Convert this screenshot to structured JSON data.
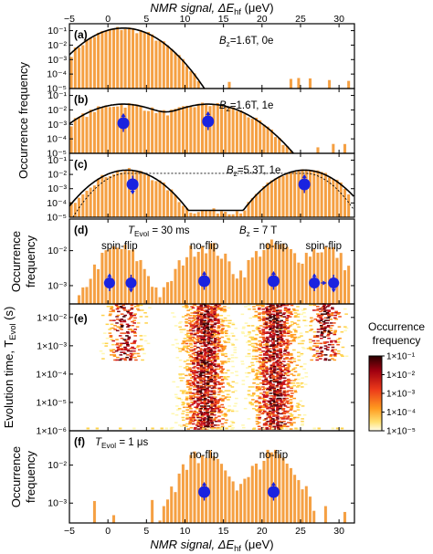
{
  "figure": {
    "x_axis_title_top": "NMR signal, ΔE",
    "x_axis_title_top_sub": "hf",
    "x_axis_title_top_unit": " (μeV)",
    "x_axis_title_bottom": "NMR signal, ΔE",
    "x_axis_title_bottom_sub": "hf",
    "x_axis_title_bottom_unit": " (μeV)",
    "y_title_abc": "Occurrence frequency",
    "y_title_d_line1": "Occurrence",
    "y_title_d_line2": "frequency",
    "y_title_e_main": "Evolution time, T",
    "y_title_e_sub": "Evol",
    "y_title_e_unit": " (s)",
    "y_title_f_line1": "Occurrence",
    "y_title_f_line2": "frequency",
    "x_ticks": [
      "−5",
      "0",
      "5",
      "10",
      "15",
      "20",
      "25",
      "30"
    ],
    "colorbar_title_line1": "Occurrence",
    "colorbar_title_line2": "frequency",
    "colorbar_ticks": [
      "1×10⁻¹",
      "1×10⁻²",
      "1×10⁻³",
      "1×10⁻⁴",
      "1×10⁻⁵"
    ],
    "colors": {
      "bar": "#f5a043",
      "bar_edge": "#ffffff",
      "spin": "#1a23e0",
      "curve": "#000000"
    }
  },
  "panels": {
    "a": {
      "tag": "(a)",
      "annot": "B",
      "annot_sub": "z",
      "annot_rest": "=1.6T, 0e",
      "yticks": [
        "10⁻¹",
        "10⁻²",
        "10⁻³",
        "10⁻⁴",
        "10⁻⁵"
      ]
    },
    "b": {
      "tag": "(b)",
      "annot": "B",
      "annot_sub": "z",
      "annot_rest": "=1.6T, 1e",
      "yticks": [
        "10⁻¹",
        "10⁻²",
        "10⁻³",
        "10⁻⁴",
        "10⁻⁵"
      ]
    },
    "c": {
      "tag": "(c)",
      "annot": "B",
      "annot_sub": "z",
      "annot_rest": "=5.3T, 1e",
      "yticks": [
        "10⁻¹",
        "10⁻²",
        "10⁻³",
        "10⁻⁴",
        "10⁻⁵"
      ]
    },
    "d": {
      "tag": "(d)",
      "annot1": "T",
      "annot1_sub": "Evol",
      "annot1_rest": " = 30 ms",
      "annot2": "B",
      "annot2_sub": "z",
      "annot2_rest": " = 7 T",
      "labels": [
        "spin-flip",
        "no-flip",
        "no-flip",
        "spin-flip"
      ],
      "yticks": [
        "10⁻²",
        "10⁻³"
      ]
    },
    "e": {
      "tag": "(e)",
      "yticks": [
        "1×10⁻²",
        "1×10⁻³",
        "1×10⁻⁴",
        "1×10⁻⁵",
        "1×10⁻⁶"
      ]
    },
    "f": {
      "tag": "(f)",
      "annot1": "T",
      "annot1_sub": "Evol",
      "annot1_rest": " = 1 μs",
      "labels": [
        "no-flip",
        "no-flip"
      ],
      "yticks": [
        "10⁻²",
        "10⁻³"
      ]
    }
  },
  "chart_data": [
    {
      "panel": "a",
      "type": "bar",
      "xlabel": "NMR signal, ΔEhf (μeV)",
      "ylabel": "Occurrence frequency",
      "xlim": [
        -5,
        32
      ],
      "ylim": [
        1e-05,
        0.3
      ],
      "yscale": "log",
      "peaks": [
        {
          "center": 2,
          "peak": 0.15,
          "sigma": 2.4
        }
      ],
      "fit": [
        {
          "type": "gaussian",
          "center": 2,
          "peak": 0.15,
          "sigma": 2.4
        }
      ]
    },
    {
      "panel": "b",
      "type": "bar",
      "xlabel": "NMR signal, ΔEhf (μeV)",
      "ylabel": "Occurrence frequency",
      "xlim": [
        -5,
        32
      ],
      "ylim": [
        1e-05,
        0.3
      ],
      "yscale": "log",
      "peaks": [
        {
          "center": 2,
          "peak": 0.025,
          "sigma": 2.8
        },
        {
          "center": 13,
          "peak": 0.025,
          "sigma": 2.8
        }
      ],
      "fit": [
        {
          "type": "double-gaussian",
          "centers": [
            2,
            13
          ],
          "peak": 0.025,
          "sigma": 2.8
        }
      ]
    },
    {
      "panel": "c",
      "type": "bar",
      "xlabel": "NMR signal, ΔEhf (μeV)",
      "ylabel": "Occurrence frequency",
      "xlim": [
        -5,
        32
      ],
      "ylim": [
        1e-05,
        0.3
      ],
      "yscale": "log",
      "peaks": [
        {
          "center": 2.5,
          "peak": 0.02,
          "sigma": 2.2
        },
        {
          "center": 25.5,
          "peak": 0.02,
          "sigma": 2.2
        }
      ],
      "plateau": 3e-05,
      "fit": [
        {
          "type": "double-gaussian-with-plateau",
          "centers": [
            2.5,
            25.5
          ],
          "peak": 0.02,
          "plateau": 3e-05
        },
        {
          "type": "dashed-envelope",
          "level": 0.012
        }
      ]
    },
    {
      "panel": "d",
      "type": "bar",
      "xlabel": "NMR signal, ΔEhf (μeV)",
      "ylabel": "Occurrence frequency",
      "xlim": [
        -5,
        32
      ],
      "ylim": [
        0.0003,
        0.08
      ],
      "yscale": "log",
      "peaks": [
        {
          "center": 1.5,
          "peak": 0.012,
          "sigma": 2.0,
          "label": "spin-flip"
        },
        {
          "center": 12.5,
          "peak": 0.015,
          "sigma": 2.0,
          "label": "no-flip"
        },
        {
          "center": 21.5,
          "peak": 0.015,
          "sigma": 2.0,
          "label": "no-flip"
        },
        {
          "center": 28,
          "peak": 0.012,
          "sigma": 2.0,
          "label": "spin-flip"
        }
      ]
    },
    {
      "panel": "e",
      "type": "heatmap",
      "xlabel": "NMR signal, ΔEhf (μeV)",
      "ylabel": "Evolution time, TEvol (s)",
      "xlim": [
        -5,
        32
      ],
      "ylim": [
        1e-06,
        0.03
      ],
      "yscale": "log",
      "colorbar": {
        "label": "Occurrence frequency",
        "range": [
          1e-05,
          0.1
        ],
        "scale": "log"
      },
      "clusters": [
        {
          "x": 12.5,
          "from_t": 1e-06,
          "to_t": 0.03
        },
        {
          "x": 21.5,
          "from_t": 1e-06,
          "to_t": 0.03
        },
        {
          "x": 2,
          "from_t": 0.0003,
          "to_t": 0.03
        },
        {
          "x": 28,
          "from_t": 0.0003,
          "to_t": 0.03
        }
      ]
    },
    {
      "panel": "f",
      "type": "bar",
      "xlabel": "NMR signal, ΔEhf (μeV)",
      "ylabel": "Occurrence frequency",
      "xlim": [
        -5,
        32
      ],
      "ylim": [
        0.0003,
        0.08
      ],
      "yscale": "log",
      "peaks": [
        {
          "center": 12.5,
          "peak": 0.02,
          "sigma": 2.0,
          "label": "no-flip"
        },
        {
          "center": 21.5,
          "peak": 0.02,
          "sigma": 2.0,
          "label": "no-flip"
        }
      ]
    }
  ]
}
